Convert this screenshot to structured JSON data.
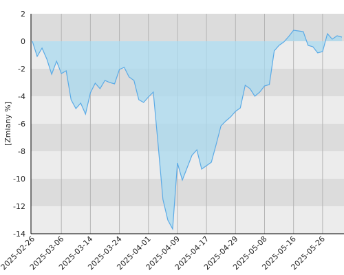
{
  "chart_data": {
    "type": "area",
    "y_label": "[Zmiany %]",
    "categories": [
      "2025-02-26",
      null,
      null,
      null,
      null,
      null,
      "2025-03-06",
      null,
      null,
      null,
      null,
      null,
      "2025-03-14",
      null,
      null,
      null,
      null,
      null,
      "2025-03-24",
      null,
      null,
      null,
      null,
      null,
      "2025-04-01",
      null,
      null,
      null,
      null,
      null,
      "2025-04-09",
      null,
      null,
      null,
      null,
      null,
      "2025-04-17",
      null,
      null,
      null,
      null,
      null,
      "2025-04-29",
      null,
      null,
      null,
      null,
      null,
      "2025-05-08",
      null,
      null,
      null,
      null,
      null,
      "2025-05-16",
      null,
      null,
      null,
      null,
      null,
      "2025-05-26",
      null,
      null,
      null,
      null
    ],
    "values": [
      0,
      -1.1,
      -0.5,
      -1.3,
      -2.4,
      -1.45,
      -2.35,
      -2.15,
      -4.25,
      -4.9,
      -4.5,
      -5.3,
      -3.75,
      -3.05,
      -3.45,
      -2.85,
      -3.0,
      -3.1,
      -2.05,
      -1.9,
      -2.6,
      -2.85,
      -4.25,
      -4.45,
      -4.05,
      -3.7,
      -7.5,
      -11.5,
      -13.0,
      -13.65,
      -8.85,
      -10.1,
      -9.2,
      -8.3,
      -7.9,
      -9.3,
      -9.05,
      -8.8,
      -7.5,
      -6.15,
      -5.8,
      -5.5,
      -5.1,
      -4.85,
      -3.2,
      -3.45,
      -4.0,
      -3.7,
      -3.25,
      -3.15,
      -0.7,
      -0.3,
      -0.05,
      0.35,
      0.8,
      0.75,
      0.7,
      -0.3,
      -0.4,
      -0.85,
      -0.75,
      0.55,
      0.15,
      0.4,
      0.3
    ],
    "ylim": [
      -14,
      2
    ],
    "yticks": [
      -14,
      -12,
      -10,
      -8,
      -6,
      -4,
      -2,
      0,
      2
    ],
    "grid": true,
    "line_color": "#5aaae6",
    "fill_color": "#a9d9ef",
    "band_colors": [
      "#ececec",
      "#dcdcdc"
    ]
  }
}
